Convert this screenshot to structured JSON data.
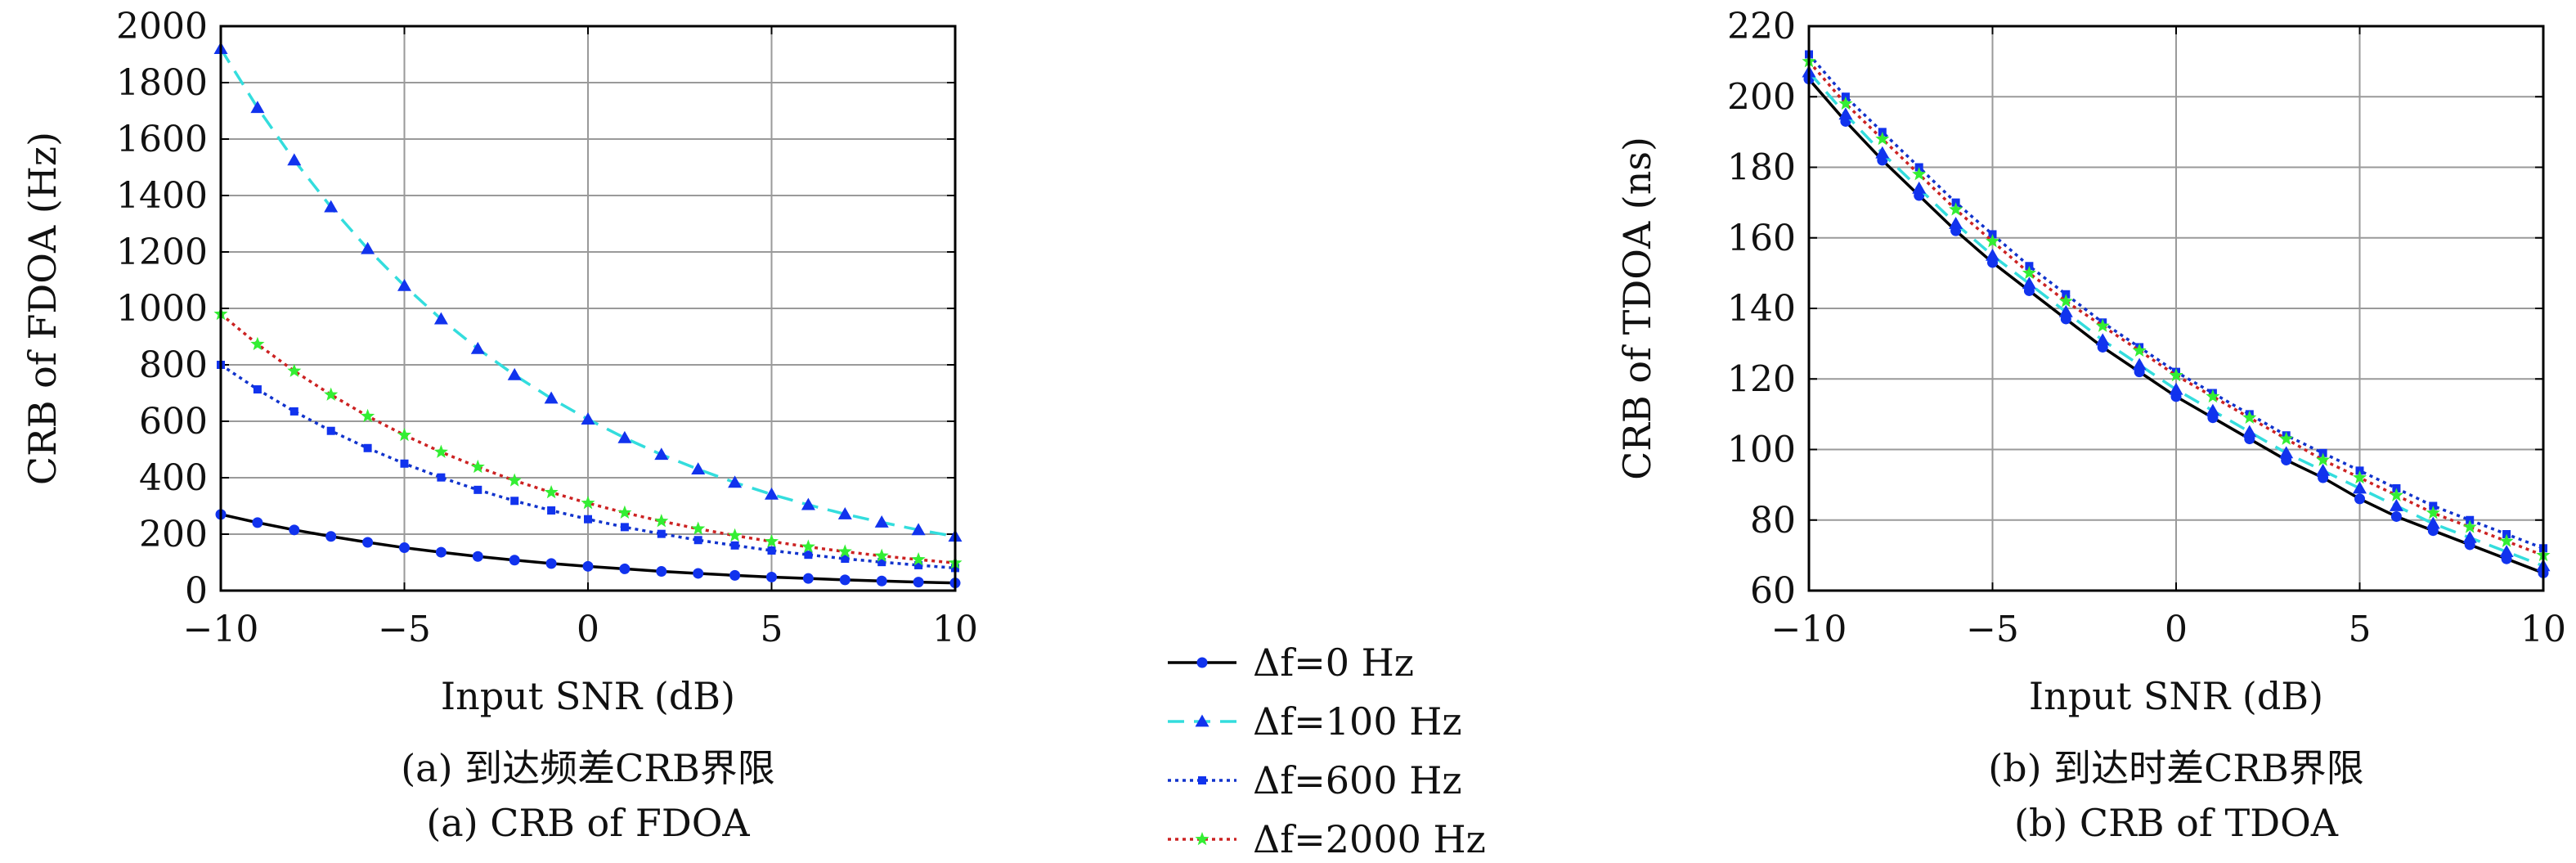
{
  "legend": [
    {
      "label": "Δf=0 Hz",
      "color": "#000000",
      "dash": "",
      "marker": "circle"
    },
    {
      "label": "Δf=100 Hz",
      "color": "#33dddd",
      "dash": "20,12",
      "marker": "triangle"
    },
    {
      "label": "Δf=600 Hz",
      "color": "#1133cc",
      "dash": "4,5",
      "marker": "square"
    },
    {
      "label": "Δf=2000 Hz",
      "color": "#cc2222",
      "dash": "4,5",
      "marker": "star"
    }
  ],
  "marker_colors": {
    "circle": "#1133ee",
    "triangle": "#1133ee",
    "square": "#1133ee",
    "star": "#33ee33"
  },
  "chart_data": [
    {
      "type": "line",
      "xlabel": "Input SNR (dB)",
      "ylabel": "CRB of FDOA (Hz)",
      "caption_cn": "(a) 到达频差CRB界限",
      "caption_en": "(a) CRB of FDOA",
      "xlim": [
        -10,
        10
      ],
      "ylim": [
        0,
        2000
      ],
      "xticks": [
        -10,
        -5,
        0,
        5,
        10
      ],
      "yticks": [
        0,
        200,
        400,
        600,
        800,
        1000,
        1200,
        1400,
        1600,
        1800,
        2000
      ],
      "grid": true,
      "x": [
        -10,
        -9,
        -8,
        -7,
        -6,
        -5,
        -4,
        -3,
        -2,
        -1,
        0,
        1,
        2,
        3,
        4,
        5,
        6,
        7,
        8,
        9,
        10
      ],
      "series": [
        {
          "name": "Δf=0 Hz",
          "values": [
            270,
            241,
            215,
            192,
            171,
            152,
            136,
            121,
            108,
            96,
            86,
            77,
            68,
            61,
            54,
            48,
            43,
            38,
            34,
            30,
            27
          ]
        },
        {
          "name": "Δf=100 Hz",
          "values": [
            1920,
            1711,
            1525,
            1359,
            1211,
            1080,
            962,
            857,
            764,
            681,
            607,
            541,
            482,
            430,
            383,
            341,
            304,
            271,
            242,
            215,
            192
          ]
        },
        {
          "name": "Δf=600 Hz",
          "values": [
            800,
            713,
            635,
            566,
            505,
            450,
            401,
            357,
            318,
            284,
            253,
            225,
            201,
            179,
            160,
            142,
            127,
            113,
            101,
            90,
            80
          ]
        },
        {
          "name": "Δf=2000 Hz",
          "values": [
            980,
            873,
            778,
            694,
            618,
            551,
            491,
            438,
            390,
            348,
            310,
            276,
            246,
            219,
            195,
            174,
            155,
            138,
            123,
            110,
            98
          ]
        }
      ]
    },
    {
      "type": "line",
      "xlabel": "Input SNR (dB)",
      "ylabel": "CRB of TDOA (ns)",
      "caption_cn": "(b) 到达时差CRB界限",
      "caption_en": "(b) CRB of TDOA",
      "xlim": [
        -10,
        10
      ],
      "ylim": [
        60,
        220
      ],
      "xticks": [
        -10,
        -5,
        0,
        5,
        10
      ],
      "yticks": [
        60,
        80,
        100,
        120,
        140,
        160,
        180,
        200,
        220
      ],
      "grid": true,
      "x": [
        -10,
        -9,
        -8,
        -7,
        -6,
        -5,
        -4,
        -3,
        -2,
        -1,
        0,
        1,
        2,
        3,
        4,
        5,
        6,
        7,
        8,
        9,
        10
      ],
      "series": [
        {
          "name": "Δf=0 Hz",
          "values": [
            205,
            193,
            182,
            172,
            162,
            153,
            145,
            137,
            129,
            122,
            115,
            109,
            103,
            97,
            92,
            86,
            81,
            77,
            73,
            69,
            65
          ]
        },
        {
          "name": "Δf=100 Hz",
          "values": [
            207,
            195,
            184,
            174,
            164,
            155,
            147,
            139,
            131,
            124,
            117,
            111,
            105,
            99,
            94,
            89,
            84,
            79,
            75,
            71,
            67
          ]
        },
        {
          "name": "Δf=600 Hz",
          "values": [
            212,
            200,
            190,
            180,
            170,
            161,
            152,
            144,
            136,
            129,
            122,
            116,
            110,
            104,
            99,
            94,
            89,
            84,
            80,
            76,
            72
          ]
        },
        {
          "name": "Δf=2000 Hz",
          "values": [
            210,
            198,
            188,
            178,
            168,
            159,
            150,
            142,
            135,
            128,
            121,
            115,
            109,
            103,
            97,
            92,
            87,
            82,
            78,
            74,
            70
          ]
        }
      ]
    }
  ]
}
